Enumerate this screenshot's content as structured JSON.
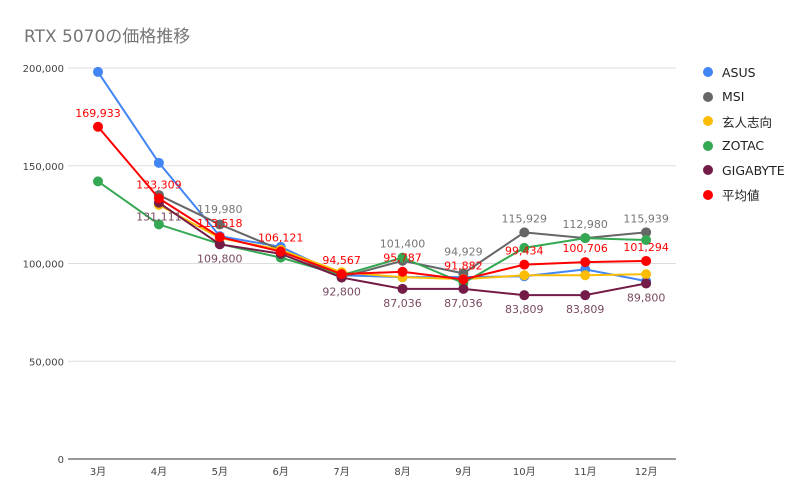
{
  "chart_data": {
    "type": "line",
    "title": "RTX 5070の価格推移",
    "xlabel": "",
    "ylabel": "",
    "categories": [
      "3月",
      "4月",
      "5月",
      "6月",
      "7月",
      "8月",
      "9月",
      "10月",
      "11月",
      "12月"
    ],
    "ylim": [
      0,
      200000
    ],
    "yticks": [
      "0",
      "50,000",
      "100,000",
      "150,000",
      "200,000"
    ],
    "ytick_values": [
      0,
      50000,
      100000,
      150000,
      200000
    ],
    "grid": true,
    "legend_position": "right",
    "series": [
      {
        "name": "ASUS",
        "color": "#4285f4",
        "values": [
          198000,
          151500,
          114000,
          108500,
          94000,
          93000,
          93000,
          93500,
          97000,
          91000
        ],
        "labels": []
      },
      {
        "name": "MSI",
        "color": "#666666",
        "values": [
          null,
          135000,
          119980,
          107000,
          93000,
          101400,
          94929,
          115929,
          112980,
          115939
        ],
        "labels": [
          null,
          null,
          "119,980",
          null,
          null,
          "101,400",
          "94,929",
          "115,929",
          "112,980",
          "115,939"
        ]
      },
      {
        "name": "玄人志向",
        "color": "#fbbc04",
        "values": [
          null,
          130000,
          113000,
          107000,
          95500,
          93000,
          92000,
          94000,
          94000,
          94500
        ],
        "labels": []
      },
      {
        "name": "ZOTAC",
        "color": "#34a853",
        "values": [
          142000,
          120000,
          110000,
          103000,
          94000,
          103000,
          90000,
          108000,
          113000,
          112000
        ],
        "labels": []
      },
      {
        "name": "GIGABYTE",
        "color": "#741b47",
        "values": [
          null,
          131111,
          109800,
          105000,
          92800,
          87036,
          87036,
          83809,
          83809,
          89800
        ],
        "labels": [
          null,
          "131,111",
          "109,800",
          null,
          "92,800",
          "87,036",
          "87,036",
          "83,809",
          "83,809",
          "89,800"
        ]
      },
      {
        "name": "平均値",
        "color": "#ff0000",
        "values": [
          169933,
          133309,
          113518,
          106121,
          94567,
          95787,
          91882,
          99434,
          100706,
          101294
        ],
        "labels": [
          "169,933",
          "133,309",
          "113,518",
          "106,121",
          "94,567",
          "95,787",
          "91,882",
          "99,434",
          "100,706",
          "101,294"
        ]
      }
    ]
  }
}
